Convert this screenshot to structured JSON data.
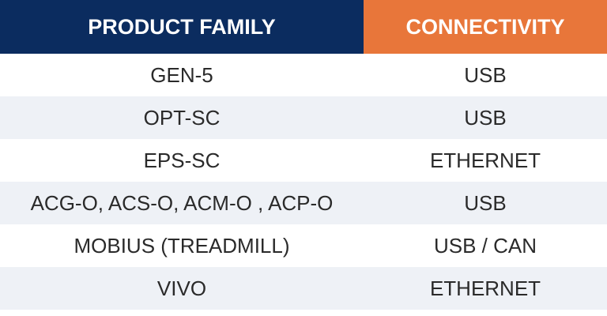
{
  "table": {
    "columns": [
      "PRODUCT FAMILY",
      "CONNECTIVITY"
    ],
    "rows": [
      [
        "GEN-5",
        "USB"
      ],
      [
        "OPT-SC",
        "USB"
      ],
      [
        "EPS-SC",
        "ETHERNET"
      ],
      [
        "ACG-O, ACS-O, ACM-O , ACP-O",
        "USB"
      ],
      [
        "MOBIUS (TREADMILL)",
        "USB / CAN"
      ],
      [
        "VIVO",
        "ETHERNET"
      ]
    ]
  }
}
